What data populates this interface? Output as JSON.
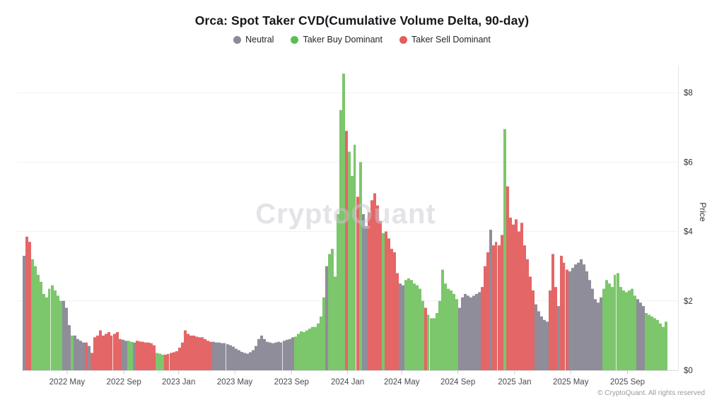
{
  "chart_data": {
    "type": "bar",
    "title": "Orca: Spot Taker CVD(Cumulative Volume Delta, 90-day)",
    "ylabel": "Price",
    "ylim": [
      0,
      8.8
    ],
    "grid": "horizontal",
    "legend_position": "top-center",
    "y_ticks": [
      {
        "label": "$0",
        "value": 0
      },
      {
        "label": "$2",
        "value": 2
      },
      {
        "label": "$4",
        "value": 4
      },
      {
        "label": "$6",
        "value": 6
      },
      {
        "label": "$8",
        "value": 8
      }
    ],
    "x_ticks": [
      {
        "label": "2022 May",
        "pos": 0.069
      },
      {
        "label": "2022 Sep",
        "pos": 0.157
      },
      {
        "label": "2023 Jan",
        "pos": 0.242
      },
      {
        "label": "2023 May",
        "pos": 0.329
      },
      {
        "label": "2023 Sep",
        "pos": 0.417
      },
      {
        "label": "2024 Jan",
        "pos": 0.504
      },
      {
        "label": "2024 May",
        "pos": 0.588
      },
      {
        "label": "2024 Sep",
        "pos": 0.675
      },
      {
        "label": "2025 Jan",
        "pos": 0.763
      },
      {
        "label": "2025 May",
        "pos": 0.85
      },
      {
        "label": "2025 Sep",
        "pos": 0.938
      }
    ],
    "legend": [
      {
        "key": "n",
        "label": "Neutral",
        "color": "#8b8a95"
      },
      {
        "key": "b",
        "label": "Taker Buy Dominant",
        "color": "#5cbd52"
      },
      {
        "key": "s",
        "label": "Taker Sell Dominant",
        "color": "#e25d5d"
      }
    ],
    "colors": {
      "n": "#8e8d99",
      "b": "#7cc66c",
      "s": "#e46666"
    },
    "points": [
      [
        3.3,
        "n"
      ],
      [
        3.85,
        "s"
      ],
      [
        3.7,
        "s"
      ],
      [
        3.2,
        "b"
      ],
      [
        3.0,
        "b"
      ],
      [
        2.75,
        "b"
      ],
      [
        2.55,
        "b"
      ],
      [
        2.2,
        "b"
      ],
      [
        2.1,
        "b"
      ],
      [
        2.35,
        "b"
      ],
      [
        2.45,
        "b"
      ],
      [
        2.3,
        "b"
      ],
      [
        2.15,
        "b"
      ],
      [
        2.0,
        "b"
      ],
      [
        2.0,
        "n"
      ],
      [
        1.8,
        "n"
      ],
      [
        1.3,
        "n"
      ],
      [
        1.0,
        "b"
      ],
      [
        1.0,
        "n"
      ],
      [
        0.9,
        "n"
      ],
      [
        0.85,
        "n"
      ],
      [
        0.8,
        "n"
      ],
      [
        0.8,
        "s"
      ],
      [
        0.7,
        "n"
      ],
      [
        0.5,
        "s"
      ],
      [
        0.95,
        "s"
      ],
      [
        1.0,
        "s"
      ],
      [
        1.15,
        "s"
      ],
      [
        1.0,
        "s"
      ],
      [
        1.05,
        "s"
      ],
      [
        1.1,
        "s"
      ],
      [
        1.0,
        "s"
      ],
      [
        1.05,
        "s"
      ],
      [
        1.1,
        "s"
      ],
      [
        0.9,
        "s"
      ],
      [
        0.88,
        "n"
      ],
      [
        0.85,
        "n"
      ],
      [
        0.85,
        "b"
      ],
      [
        0.82,
        "b"
      ],
      [
        0.8,
        "n"
      ],
      [
        0.85,
        "s"
      ],
      [
        0.83,
        "s"
      ],
      [
        0.82,
        "s"
      ],
      [
        0.8,
        "s"
      ],
      [
        0.8,
        "s"
      ],
      [
        0.78,
        "s"
      ],
      [
        0.72,
        "s"
      ],
      [
        0.5,
        "b"
      ],
      [
        0.48,
        "b"
      ],
      [
        0.45,
        "b"
      ],
      [
        0.45,
        "s"
      ],
      [
        0.47,
        "s"
      ],
      [
        0.5,
        "s"
      ],
      [
        0.52,
        "s"
      ],
      [
        0.55,
        "s"
      ],
      [
        0.65,
        "s"
      ],
      [
        0.8,
        "s"
      ],
      [
        1.15,
        "s"
      ],
      [
        1.05,
        "s"
      ],
      [
        1.0,
        "s"
      ],
      [
        1.0,
        "s"
      ],
      [
        0.97,
        "s"
      ],
      [
        0.95,
        "s"
      ],
      [
        0.95,
        "s"
      ],
      [
        0.9,
        "s"
      ],
      [
        0.85,
        "s"
      ],
      [
        0.82,
        "s"
      ],
      [
        0.82,
        "n"
      ],
      [
        0.8,
        "n"
      ],
      [
        0.8,
        "n"
      ],
      [
        0.78,
        "n"
      ],
      [
        0.78,
        "n"
      ],
      [
        0.75,
        "n"
      ],
      [
        0.72,
        "n"
      ],
      [
        0.68,
        "n"
      ],
      [
        0.62,
        "n"
      ],
      [
        0.58,
        "n"
      ],
      [
        0.53,
        "n"
      ],
      [
        0.5,
        "n"
      ],
      [
        0.48,
        "n"
      ],
      [
        0.52,
        "n"
      ],
      [
        0.58,
        "n"
      ],
      [
        0.7,
        "n"
      ],
      [
        0.9,
        "n"
      ],
      [
        1.0,
        "n"
      ],
      [
        0.9,
        "n"
      ],
      [
        0.82,
        "n"
      ],
      [
        0.8,
        "n"
      ],
      [
        0.78,
        "n"
      ],
      [
        0.8,
        "n"
      ],
      [
        0.82,
        "n"
      ],
      [
        0.8,
        "n"
      ],
      [
        0.85,
        "n"
      ],
      [
        0.88,
        "n"
      ],
      [
        0.9,
        "n"
      ],
      [
        0.95,
        "n"
      ],
      [
        0.97,
        "b"
      ],
      [
        1.05,
        "b"
      ],
      [
        1.12,
        "b"
      ],
      [
        1.1,
        "b"
      ],
      [
        1.15,
        "b"
      ],
      [
        1.2,
        "b"
      ],
      [
        1.25,
        "b"
      ],
      [
        1.25,
        "b"
      ],
      [
        1.35,
        "b"
      ],
      [
        1.55,
        "b"
      ],
      [
        2.1,
        "b"
      ],
      [
        3.0,
        "n"
      ],
      [
        3.35,
        "b"
      ],
      [
        3.5,
        "b"
      ],
      [
        2.7,
        "b"
      ],
      [
        4.5,
        "b"
      ],
      [
        7.5,
        "b"
      ],
      [
        8.55,
        "b"
      ],
      [
        6.9,
        "s"
      ],
      [
        6.3,
        "b"
      ],
      [
        5.6,
        "b"
      ],
      [
        6.5,
        "b"
      ],
      [
        5.0,
        "s"
      ],
      [
        6.0,
        "b"
      ],
      [
        4.5,
        "n"
      ],
      [
        4.15,
        "n"
      ],
      [
        4.55,
        "s"
      ],
      [
        4.9,
        "s"
      ],
      [
        5.1,
        "s"
      ],
      [
        4.75,
        "s"
      ],
      [
        4.3,
        "s"
      ],
      [
        3.95,
        "b"
      ],
      [
        4.0,
        "s"
      ],
      [
        3.8,
        "s"
      ],
      [
        3.5,
        "s"
      ],
      [
        3.4,
        "s"
      ],
      [
        2.8,
        "s"
      ],
      [
        2.5,
        "n"
      ],
      [
        2.45,
        "n"
      ],
      [
        2.6,
        "b"
      ],
      [
        2.65,
        "b"
      ],
      [
        2.6,
        "b"
      ],
      [
        2.5,
        "b"
      ],
      [
        2.45,
        "b"
      ],
      [
        2.35,
        "b"
      ],
      [
        2.0,
        "b"
      ],
      [
        1.8,
        "s"
      ],
      [
        1.6,
        "b"
      ],
      [
        1.5,
        "b"
      ],
      [
        1.5,
        "b"
      ],
      [
        1.65,
        "b"
      ],
      [
        2.0,
        "b"
      ],
      [
        2.9,
        "b"
      ],
      [
        2.5,
        "b"
      ],
      [
        2.35,
        "b"
      ],
      [
        2.3,
        "b"
      ],
      [
        2.2,
        "b"
      ],
      [
        2.05,
        "b"
      ],
      [
        1.8,
        "n"
      ],
      [
        2.1,
        "n"
      ],
      [
        2.2,
        "n"
      ],
      [
        2.15,
        "n"
      ],
      [
        2.1,
        "n"
      ],
      [
        2.15,
        "n"
      ],
      [
        2.2,
        "n"
      ],
      [
        2.25,
        "n"
      ],
      [
        2.4,
        "s"
      ],
      [
        3.0,
        "s"
      ],
      [
        3.4,
        "s"
      ],
      [
        4.05,
        "n"
      ],
      [
        3.6,
        "s"
      ],
      [
        3.7,
        "s"
      ],
      [
        3.6,
        "s"
      ],
      [
        3.9,
        "s"
      ],
      [
        6.95,
        "b"
      ],
      [
        5.3,
        "s"
      ],
      [
        4.4,
        "s"
      ],
      [
        4.2,
        "s"
      ],
      [
        4.35,
        "s"
      ],
      [
        4.0,
        "s"
      ],
      [
        4.25,
        "s"
      ],
      [
        3.6,
        "s"
      ],
      [
        3.2,
        "s"
      ],
      [
        2.7,
        "s"
      ],
      [
        2.3,
        "s"
      ],
      [
        1.9,
        "n"
      ],
      [
        1.7,
        "n"
      ],
      [
        1.55,
        "n"
      ],
      [
        1.45,
        "n"
      ],
      [
        1.4,
        "n"
      ],
      [
        2.3,
        "s"
      ],
      [
        3.35,
        "s"
      ],
      [
        2.4,
        "s"
      ],
      [
        1.85,
        "n"
      ],
      [
        3.3,
        "s"
      ],
      [
        3.1,
        "s"
      ],
      [
        2.9,
        "s"
      ],
      [
        2.85,
        "n"
      ],
      [
        2.95,
        "n"
      ],
      [
        3.05,
        "n"
      ],
      [
        3.1,
        "n"
      ],
      [
        3.2,
        "n"
      ],
      [
        3.05,
        "n"
      ],
      [
        2.85,
        "n"
      ],
      [
        2.6,
        "n"
      ],
      [
        2.35,
        "n"
      ],
      [
        2.05,
        "n"
      ],
      [
        1.95,
        "n"
      ],
      [
        2.1,
        "n"
      ],
      [
        2.35,
        "b"
      ],
      [
        2.6,
        "b"
      ],
      [
        2.5,
        "b"
      ],
      [
        2.4,
        "b"
      ],
      [
        2.75,
        "b"
      ],
      [
        2.8,
        "b"
      ],
      [
        2.4,
        "b"
      ],
      [
        2.3,
        "b"
      ],
      [
        2.25,
        "b"
      ],
      [
        2.3,
        "b"
      ],
      [
        2.35,
        "b"
      ],
      [
        2.15,
        "b"
      ],
      [
        2.05,
        "n"
      ],
      [
        1.95,
        "n"
      ],
      [
        1.85,
        "n"
      ],
      [
        1.65,
        "b"
      ],
      [
        1.6,
        "b"
      ],
      [
        1.55,
        "b"
      ],
      [
        1.5,
        "b"
      ],
      [
        1.45,
        "b"
      ],
      [
        1.35,
        "b"
      ],
      [
        1.25,
        "b"
      ],
      [
        1.4,
        "b"
      ]
    ],
    "separators": [
      9,
      31,
      51,
      71,
      91,
      117,
      143,
      167,
      191,
      209
    ]
  },
  "branding": {
    "watermark": "CryptoQuant",
    "copyright": "© CryptoQuant. All rights reserved"
  }
}
